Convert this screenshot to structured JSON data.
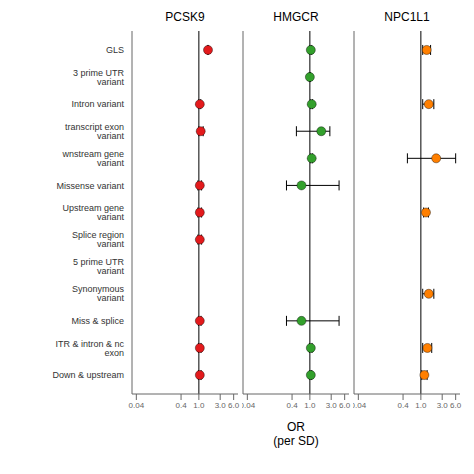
{
  "chart_data": {
    "type": "forest",
    "categories": [
      "GLS",
      "3 prime UTR variant",
      "Intron variant",
      "transcript exon variant",
      "wnstream gene variant",
      "Missense variant",
      "Upstream gene variant",
      "Splice region variant",
      "5 prime UTR variant",
      "Synonymous variant",
      "Miss & splice",
      "ITR & intron & nc exon",
      "Down & upstream"
    ],
    "series": [
      {
        "name": "PCSK9",
        "color": "#e31a1c",
        "values": [
          1.6,
          null,
          1.05,
          1.1,
          null,
          1.05,
          1.05,
          1.05,
          null,
          null,
          1.05,
          1.05,
          1.05
        ],
        "lo": [
          1.6,
          null,
          1.0,
          1.0,
          null,
          0.95,
          0.95,
          0.95,
          null,
          null,
          0.98,
          0.98,
          0.98
        ],
        "hi": [
          1.6,
          null,
          1.1,
          1.25,
          null,
          1.15,
          1.15,
          1.15,
          null,
          null,
          1.12,
          1.12,
          1.12
        ]
      },
      {
        "name": "HMGCR",
        "color": "#33a02c",
        "values": [
          1.05,
          1.0,
          1.1,
          1.8,
          1.1,
          0.65,
          null,
          null,
          null,
          null,
          0.65,
          1.05,
          1.05
        ],
        "lo": [
          1.0,
          0.97,
          1.05,
          0.5,
          1.05,
          0.3,
          null,
          null,
          null,
          null,
          0.3,
          0.98,
          1.0
        ],
        "hi": [
          1.1,
          1.03,
          1.15,
          2.8,
          1.15,
          4.5,
          null,
          null,
          null,
          null,
          4.5,
          1.12,
          1.1
        ]
      },
      {
        "name": "NPC1L1",
        "color": "#ff7f00",
        "values": [
          1.35,
          null,
          1.5,
          null,
          2.2,
          null,
          1.3,
          null,
          null,
          1.5,
          null,
          1.4,
          1.2
        ],
        "lo": [
          1.1,
          null,
          1.1,
          null,
          0.5,
          null,
          1.15,
          null,
          null,
          1.1,
          null,
          1.1,
          1.05
        ],
        "hi": [
          1.65,
          null,
          1.95,
          null,
          6.0,
          null,
          1.48,
          null,
          null,
          1.95,
          null,
          1.75,
          1.38
        ]
      }
    ],
    "xlabel": "OR\n(per SD)",
    "log": "x",
    "xlim": [
      0.032,
      7.5
    ],
    "xticks": [
      0.04,
      0.4,
      {
        "value": 1.0,
        "label": "1.0"
      },
      {
        "value": 3.0,
        "label": "3.0"
      },
      {
        "value": 6.0,
        "label": "6.0"
      }
    ],
    "reference_line": 1.0,
    "grid": false
  }
}
